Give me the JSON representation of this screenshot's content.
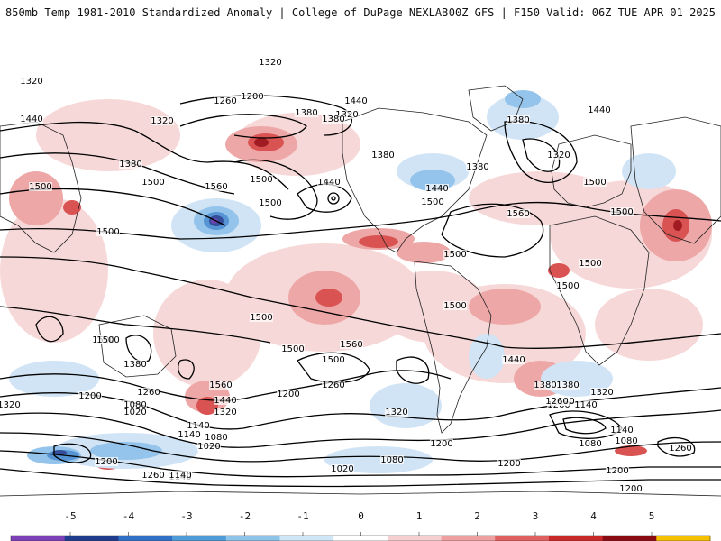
{
  "header": {
    "left_title": "850mb Temp 1981-2010 Standardized Anomaly | College of DuPage NEXLAB",
    "right_title": "00Z GFS | F150 Valid: 06Z TUE APR 01 2025"
  },
  "colorbar": {
    "labels": [
      "-5",
      "-4",
      "-3",
      "-2",
      "-1",
      "0",
      "1",
      "2",
      "3",
      "4",
      "5"
    ],
    "colors": [
      "#7b3fb8",
      "#1f3b8c",
      "#2f6fc6",
      "#4f9ad8",
      "#8ec3ea",
      "#cfe6f6",
      "#ffffff",
      "#f6d0d0",
      "#eea0a0",
      "#e06060",
      "#c82828",
      "#8a0a14",
      "#f4c000"
    ]
  },
  "map": {
    "contour_labels": [
      "1320",
      "1320",
      "1200",
      "1260",
      "1440",
      "1320",
      "1380",
      "1320",
      "1380",
      "1440",
      "1380",
      "1380",
      "1500",
      "1500",
      "1560",
      "1500",
      "1500",
      "1440",
      "1380",
      "1440",
      "1500",
      "1380",
      "1320",
      "1440",
      "1500",
      "1560",
      "1500",
      "1500",
      "1500",
      "1500",
      "1500",
      "1500",
      "1500",
      "1500",
      "1560",
      "1500",
      "1500",
      "1440",
      "1500",
      "1380",
      "1560",
      "1380",
      "1320",
      "1260",
      "1200",
      "1080",
      "1020",
      "1440",
      "1320",
      "1200",
      "1260",
      "1320",
      "1140",
      "1080",
      "1020",
      "1140",
      "1200",
      "1260",
      "1140",
      "1020",
      "1080",
      "1200",
      "1260",
      "1140",
      "1080",
      "1200",
      "1140",
      "1260",
      "1200",
      "1320",
      "1380",
      "1260",
      "1140",
      "1080",
      "1200",
      "1140"
    ],
    "palette": {
      "pink": "#f7d6d6",
      "light_red": "#eea3a3",
      "red": "#d84a4a",
      "dark_red": "#9c0f18",
      "light_blue": "#cfe3f5",
      "blue": "#8fc1ea",
      "mid_blue": "#4d8fd1",
      "dark_blue": "#2a4596",
      "purple": "#6a3ab0"
    }
  }
}
